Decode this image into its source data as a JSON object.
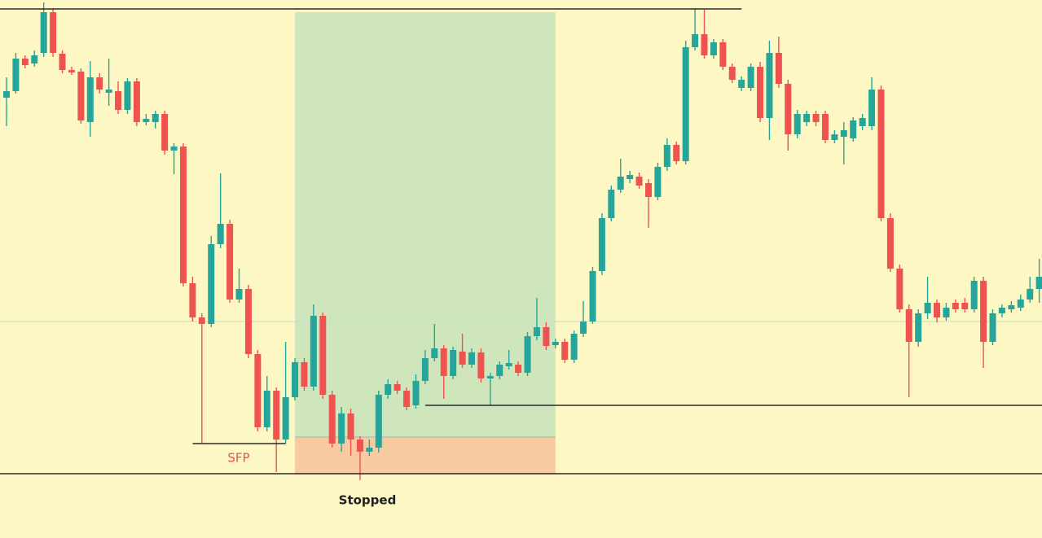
{
  "chart_data": {
    "type": "candlestick",
    "ylim": [
      0,
      660
    ],
    "up_color": "#26a69a",
    "down_color": "#ef5350",
    "open": [
      540,
      548,
      588,
      582,
      595,
      645,
      594,
      574,
      572,
      510,
      565,
      546,
      548,
      525,
      560,
      510,
      510,
      520,
      475,
      480,
      312,
      270,
      262,
      360,
      385,
      292,
      305,
      225,
      135,
      180,
      120,
      172,
      215,
      185,
      272,
      175,
      115,
      152,
      120,
      105,
      110,
      175,
      188,
      180,
      162,
      192,
      220,
      232,
      198,
      228,
      212,
      227,
      195,
      198,
      210,
      212,
      202,
      247,
      258,
      236,
      240,
      218,
      250,
      265,
      327,
      392,
      427,
      440,
      443,
      435,
      418,
      455,
      482,
      462,
      602,
      618,
      592,
      608,
      578,
      552,
      552,
      578,
      515,
      595,
      557,
      495,
      510,
      520,
      520,
      488,
      492,
      490,
      505,
      505,
      550,
      392,
      330,
      280,
      240,
      275,
      288,
      270,
      288,
      288,
      280,
      315,
      240,
      275,
      280,
      282,
      292,
      305
    ],
    "high": [
      565,
      595,
      592,
      598,
      657,
      650,
      598,
      578,
      576,
      585,
      570,
      588,
      560,
      564,
      564,
      520,
      524,
      524,
      484,
      484,
      320,
      275,
      370,
      447,
      390,
      330,
      310,
      230,
      198,
      184,
      240,
      220,
      220,
      286,
      276,
      180,
      160,
      158,
      124,
      120,
      180,
      194,
      192,
      184,
      200,
      230,
      262,
      236,
      234,
      250,
      232,
      232,
      202,
      216,
      230,
      216,
      252,
      294,
      264,
      244,
      244,
      254,
      290,
      332,
      398,
      432,
      465,
      450,
      448,
      440,
      460,
      490,
      486,
      610,
      650,
      648,
      612,
      612,
      582,
      566,
      582,
      584,
      610,
      615,
      562,
      525,
      524,
      524,
      524,
      500,
      510,
      516,
      520,
      565,
      555,
      398,
      335,
      286,
      280,
      320,
      292,
      288,
      292,
      294,
      320,
      320,
      280,
      286,
      290,
      298,
      320,
      342
    ],
    "low": [
      505,
      545,
      576,
      578,
      590,
      590,
      570,
      568,
      508,
      492,
      545,
      530,
      520,
      520,
      505,
      506,
      502,
      470,
      446,
      308,
      265,
      115,
      258,
      355,
      288,
      288,
      220,
      130,
      130,
      80,
      115,
      168,
      180,
      180,
      170,
      110,
      105,
      100,
      70,
      100,
      104,
      170,
      176,
      156,
      158,
      188,
      216,
      170,
      194,
      208,
      208,
      190,
      162,
      194,
      206,
      198,
      198,
      242,
      230,
      232,
      214,
      214,
      246,
      262,
      322,
      388,
      423,
      435,
      428,
      380,
      414,
      450,
      458,
      458,
      598,
      588,
      588,
      574,
      558,
      548,
      548,
      510,
      488,
      552,
      475,
      490,
      505,
      505,
      484,
      484,
      458,
      486,
      500,
      500,
      388,
      326,
      276,
      172,
      234,
      268,
      264,
      266,
      276,
      276,
      276,
      208,
      236,
      270,
      276,
      278,
      288,
      288
    ],
    "close": [
      548,
      588,
      580,
      592,
      645,
      595,
      574,
      571,
      512,
      565,
      550,
      550,
      525,
      560,
      510,
      514,
      520,
      475,
      480,
      312,
      270,
      262,
      360,
      385,
      292,
      305,
      225,
      135,
      180,
      120,
      172,
      215,
      185,
      272,
      175,
      115,
      152,
      120,
      105,
      110,
      175,
      188,
      180,
      160,
      192,
      220,
      232,
      198,
      230,
      212,
      227,
      195,
      198,
      212,
      214,
      202,
      247,
      258,
      235,
      240,
      218,
      250,
      265,
      327,
      392,
      427,
      443,
      445,
      432,
      418,
      455,
      482,
      462,
      602,
      618,
      592,
      608,
      578,
      562,
      562,
      578,
      515,
      595,
      557,
      495,
      520,
      520,
      510,
      488,
      495,
      500,
      512,
      515,
      550,
      392,
      330,
      280,
      240,
      275,
      288,
      270,
      282,
      280,
      280,
      315,
      240,
      275,
      282,
      285,
      292,
      305,
      320
    ],
    "position": {
      "entry": 123,
      "target": 645,
      "stop": 77,
      "from": 31,
      "to": 59,
      "profit_color": "#cfe6bc",
      "loss_color": "#f8caa2"
    },
    "levels": [
      {
        "value": 649,
        "from": 0,
        "to": 79,
        "color": "#2b2b2b"
      },
      {
        "value": 78,
        "from": 0,
        "to": 111,
        "color": "#2b2b2b"
      },
      {
        "value": 162,
        "from": 45,
        "to": 111,
        "color": "#2b2b2b"
      },
      {
        "value": 115,
        "from": 20,
        "to": 30,
        "color": "#2b2b2b"
      },
      {
        "value": 265,
        "from": 0,
        "to": 111,
        "color": "#bfe0c4"
      }
    ],
    "annotations": {
      "sfp": "SFP",
      "stopped": "Stopped"
    }
  }
}
